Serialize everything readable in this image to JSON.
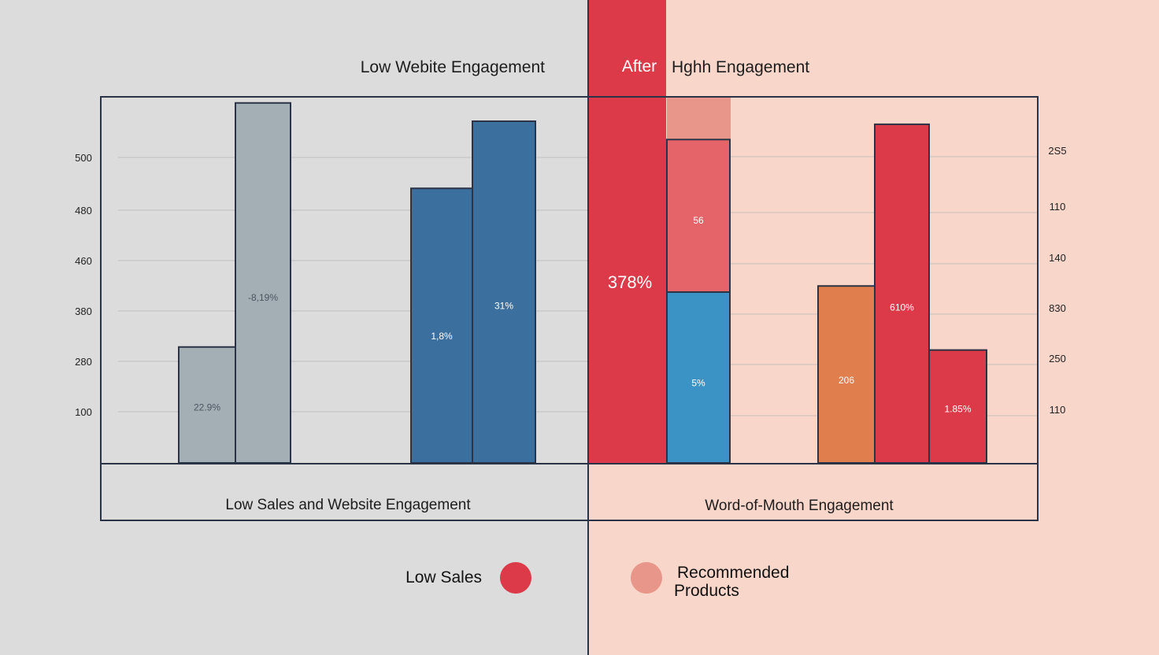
{
  "chart_data": {
    "type": "bar",
    "left_panel": {
      "title": "Low Webite Engagement",
      "caption": "Low Sales and Website Engagement",
      "y_ticks": [
        "500",
        "480",
        "460",
        "380",
        "280",
        "100"
      ],
      "groups": [
        {
          "bars": [
            {
              "value": 190,
              "label": "22.9%",
              "color": "#a3afb4"
            },
            {
              "value": 590,
              "label": "-8,19%",
              "color": "#a3afb4"
            }
          ]
        },
        {
          "bars": [
            {
              "value": 450,
              "label": "1,8%",
              "color": "#3b6f9e"
            },
            {
              "value": 560,
              "label": "31%",
              "color": "#3b6f9e"
            }
          ]
        }
      ]
    },
    "right_panel": {
      "after_label": "After",
      "title": "Hghh Engagement",
      "caption": "Word-of-Mouth Engagement",
      "y_ticks": [
        "2S5",
        "110",
        "140",
        "830",
        "250",
        "110"
      ],
      "tall_bar": {
        "label": "378%",
        "color": "#dd3a49"
      },
      "stacked_bar": {
        "ghost_color": "#e8958a",
        "segments": [
          {
            "value": 280,
            "label": "5%",
            "color": "#3a92c5"
          },
          {
            "value": 250,
            "label": "56",
            "color": "#e4646a"
          }
        ]
      },
      "groups": [
        {
          "bars": [
            {
              "value": 290,
              "label": "206",
              "color": "#e07e4d"
            },
            {
              "value": 555,
              "label": "610%",
              "color": "#dd3a49"
            },
            {
              "value": 185,
              "label": "1.85%",
              "color": "#dd3a49"
            }
          ]
        }
      ]
    },
    "legend": [
      {
        "label": "Low Sales",
        "color": "#dd3a49"
      },
      {
        "label": "Recommended Products",
        "color": "#e8958a"
      }
    ],
    "ylim": [
      0,
      600
    ]
  }
}
